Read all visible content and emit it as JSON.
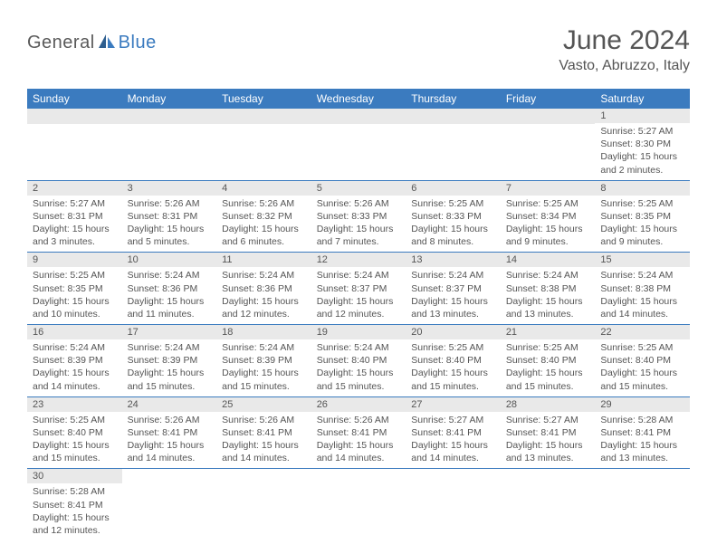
{
  "logo": {
    "part1": "General",
    "part2": "Blue"
  },
  "title": "June 2024",
  "location": "Vasto, Abruzzo, Italy",
  "colors": {
    "header_bg": "#3b7bbf",
    "header_fg": "#ffffff",
    "daynum_bg": "#e9e9e9",
    "row_border": "#3b7bbf",
    "text": "#555555",
    "logo_grey": "#5a5a5a",
    "logo_blue": "#3b7bbf"
  },
  "day_headers": [
    "Sunday",
    "Monday",
    "Tuesday",
    "Wednesday",
    "Thursday",
    "Friday",
    "Saturday"
  ],
  "weeks": [
    [
      null,
      null,
      null,
      null,
      null,
      null,
      {
        "n": "1",
        "sr": "5:27 AM",
        "ss": "8:30 PM",
        "dl": "15 hours and 2 minutes."
      }
    ],
    [
      {
        "n": "2",
        "sr": "5:27 AM",
        "ss": "8:31 PM",
        "dl": "15 hours and 3 minutes."
      },
      {
        "n": "3",
        "sr": "5:26 AM",
        "ss": "8:31 PM",
        "dl": "15 hours and 5 minutes."
      },
      {
        "n": "4",
        "sr": "5:26 AM",
        "ss": "8:32 PM",
        "dl": "15 hours and 6 minutes."
      },
      {
        "n": "5",
        "sr": "5:26 AM",
        "ss": "8:33 PM",
        "dl": "15 hours and 7 minutes."
      },
      {
        "n": "6",
        "sr": "5:25 AM",
        "ss": "8:33 PM",
        "dl": "15 hours and 8 minutes."
      },
      {
        "n": "7",
        "sr": "5:25 AM",
        "ss": "8:34 PM",
        "dl": "15 hours and 9 minutes."
      },
      {
        "n": "8",
        "sr": "5:25 AM",
        "ss": "8:35 PM",
        "dl": "15 hours and 9 minutes."
      }
    ],
    [
      {
        "n": "9",
        "sr": "5:25 AM",
        "ss": "8:35 PM",
        "dl": "15 hours and 10 minutes."
      },
      {
        "n": "10",
        "sr": "5:24 AM",
        "ss": "8:36 PM",
        "dl": "15 hours and 11 minutes."
      },
      {
        "n": "11",
        "sr": "5:24 AM",
        "ss": "8:36 PM",
        "dl": "15 hours and 12 minutes."
      },
      {
        "n": "12",
        "sr": "5:24 AM",
        "ss": "8:37 PM",
        "dl": "15 hours and 12 minutes."
      },
      {
        "n": "13",
        "sr": "5:24 AM",
        "ss": "8:37 PM",
        "dl": "15 hours and 13 minutes."
      },
      {
        "n": "14",
        "sr": "5:24 AM",
        "ss": "8:38 PM",
        "dl": "15 hours and 13 minutes."
      },
      {
        "n": "15",
        "sr": "5:24 AM",
        "ss": "8:38 PM",
        "dl": "15 hours and 14 minutes."
      }
    ],
    [
      {
        "n": "16",
        "sr": "5:24 AM",
        "ss": "8:39 PM",
        "dl": "15 hours and 14 minutes."
      },
      {
        "n": "17",
        "sr": "5:24 AM",
        "ss": "8:39 PM",
        "dl": "15 hours and 15 minutes."
      },
      {
        "n": "18",
        "sr": "5:24 AM",
        "ss": "8:39 PM",
        "dl": "15 hours and 15 minutes."
      },
      {
        "n": "19",
        "sr": "5:24 AM",
        "ss": "8:40 PM",
        "dl": "15 hours and 15 minutes."
      },
      {
        "n": "20",
        "sr": "5:25 AM",
        "ss": "8:40 PM",
        "dl": "15 hours and 15 minutes."
      },
      {
        "n": "21",
        "sr": "5:25 AM",
        "ss": "8:40 PM",
        "dl": "15 hours and 15 minutes."
      },
      {
        "n": "22",
        "sr": "5:25 AM",
        "ss": "8:40 PM",
        "dl": "15 hours and 15 minutes."
      }
    ],
    [
      {
        "n": "23",
        "sr": "5:25 AM",
        "ss": "8:40 PM",
        "dl": "15 hours and 15 minutes."
      },
      {
        "n": "24",
        "sr": "5:26 AM",
        "ss": "8:41 PM",
        "dl": "15 hours and 14 minutes."
      },
      {
        "n": "25",
        "sr": "5:26 AM",
        "ss": "8:41 PM",
        "dl": "15 hours and 14 minutes."
      },
      {
        "n": "26",
        "sr": "5:26 AM",
        "ss": "8:41 PM",
        "dl": "15 hours and 14 minutes."
      },
      {
        "n": "27",
        "sr": "5:27 AM",
        "ss": "8:41 PM",
        "dl": "15 hours and 14 minutes."
      },
      {
        "n": "28",
        "sr": "5:27 AM",
        "ss": "8:41 PM",
        "dl": "15 hours and 13 minutes."
      },
      {
        "n": "29",
        "sr": "5:28 AM",
        "ss": "8:41 PM",
        "dl": "15 hours and 13 minutes."
      }
    ],
    [
      {
        "n": "30",
        "sr": "5:28 AM",
        "ss": "8:41 PM",
        "dl": "15 hours and 12 minutes."
      },
      null,
      null,
      null,
      null,
      null,
      null
    ]
  ],
  "labels": {
    "sunrise": "Sunrise:",
    "sunset": "Sunset:",
    "daylight": "Daylight:"
  }
}
